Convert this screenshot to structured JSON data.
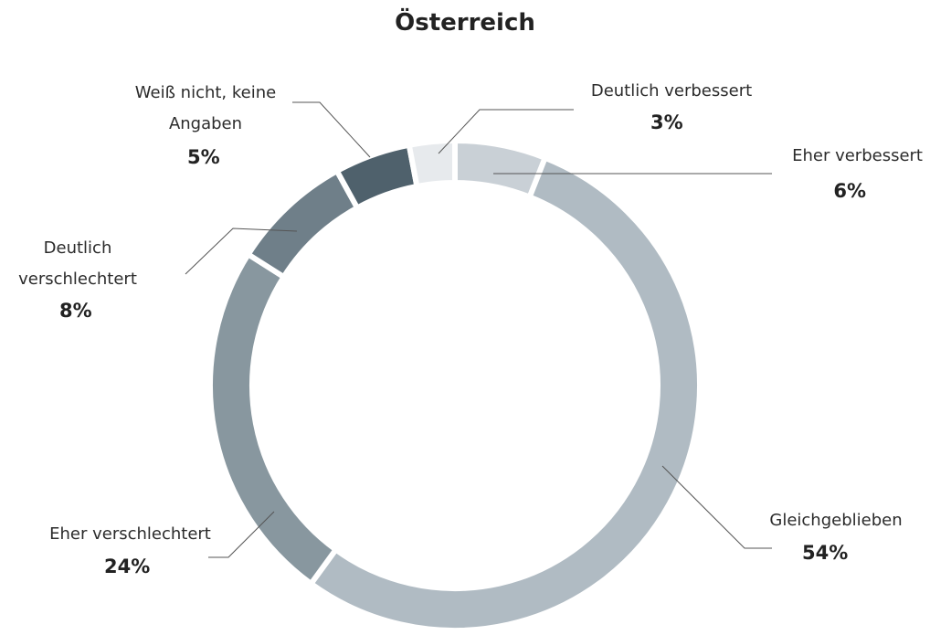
{
  "chart_data": {
    "type": "pie",
    "donut": true,
    "title": "Österreich",
    "categories": [
      "Eher verbessert",
      "Gleichgeblieben",
      "Eher verschlechtert",
      "Deutlich verschlechtert",
      "Weiß nicht, keine Angaben",
      "Deutlich verbessert"
    ],
    "values": [
      6,
      54,
      24,
      8,
      5,
      3
    ],
    "value_labels": [
      "6%",
      "54%",
      "24%",
      "8%",
      "5%",
      "3%"
    ],
    "colors": [
      "#c9d0d6",
      "#b0bbc3",
      "#88979f",
      "#6f7f89",
      "#4f616c",
      "#e7eaed"
    ]
  }
}
